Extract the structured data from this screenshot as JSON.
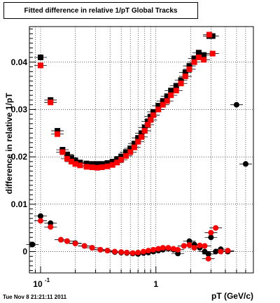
{
  "chart_data": {
    "type": "scatter",
    "title": "Fitted difference in relative 1/pT  Global Tracks",
    "xlabel": "pT (GeV/c)",
    "ylabel": "difference in relative 1/pT",
    "xscale": "log",
    "xlim": [
      0.08,
      7.0
    ],
    "ylim": [
      -0.0045,
      0.0475
    ],
    "x_ticks": [
      {
        "value": 0.1,
        "base": "10",
        "exp": "-1"
      },
      {
        "value": 1,
        "label": "1"
      }
    ],
    "y_ticks": [
      {
        "value": 0,
        "label": "0"
      },
      {
        "value": 0.01,
        "label": "0.01"
      },
      {
        "value": 0.02,
        "label": "0.02"
      },
      {
        "value": 0.03,
        "label": "0.03"
      },
      {
        "value": 0.04,
        "label": "0.04"
      }
    ],
    "grid": true,
    "series": [
      {
        "color": "#000000",
        "marker": "square",
        "points": [
          [
            0.1,
            0.041
          ],
          [
            0.122,
            0.032
          ],
          [
            0.14,
            0.0255
          ],
          [
            0.155,
            0.0215
          ],
          [
            0.17,
            0.0205
          ],
          [
            0.185,
            0.0198
          ],
          [
            0.2,
            0.0192
          ],
          [
            0.22,
            0.0188
          ],
          [
            0.25,
            0.0186
          ],
          [
            0.28,
            0.0185
          ],
          [
            0.31,
            0.0185
          ],
          [
            0.34,
            0.0185
          ],
          [
            0.38,
            0.0187
          ],
          [
            0.42,
            0.019
          ],
          [
            0.46,
            0.0195
          ],
          [
            0.5,
            0.0201
          ],
          [
            0.55,
            0.021
          ],
          [
            0.6,
            0.0218
          ],
          [
            0.65,
            0.0228
          ],
          [
            0.7,
            0.024
          ],
          [
            0.75,
            0.025
          ],
          [
            0.8,
            0.0262
          ],
          [
            0.85,
            0.0275
          ],
          [
            0.9,
            0.0285
          ],
          [
            0.95,
            0.0295
          ],
          [
            1.05,
            0.0308
          ],
          [
            1.15,
            0.0318
          ],
          [
            1.25,
            0.0328
          ],
          [
            1.35,
            0.034
          ],
          [
            1.5,
            0.035
          ],
          [
            1.65,
            0.0362
          ],
          [
            1.8,
            0.0378
          ],
          [
            1.95,
            0.0392
          ],
          [
            2.15,
            0.0408
          ],
          [
            2.35,
            0.042
          ],
          [
            2.6,
            0.0415
          ],
          [
            2.9,
            0.0455
          ],
          [
            3.1,
            0.0455
          ]
        ]
      },
      {
        "color": "#ff0000",
        "marker": "square",
        "points": [
          [
            0.1,
            0.0393
          ],
          [
            0.122,
            0.0315
          ],
          [
            0.14,
            0.0248
          ],
          [
            0.155,
            0.021
          ],
          [
            0.17,
            0.0196
          ],
          [
            0.185,
            0.019
          ],
          [
            0.2,
            0.0185
          ],
          [
            0.22,
            0.0182
          ],
          [
            0.25,
            0.0179
          ],
          [
            0.28,
            0.0178
          ],
          [
            0.31,
            0.0177
          ],
          [
            0.34,
            0.0178
          ],
          [
            0.38,
            0.018
          ],
          [
            0.42,
            0.0183
          ],
          [
            0.46,
            0.0188
          ],
          [
            0.5,
            0.0194
          ],
          [
            0.55,
            0.0202
          ],
          [
            0.6,
            0.021
          ],
          [
            0.65,
            0.022
          ],
          [
            0.7,
            0.0232
          ],
          [
            0.75,
            0.0242
          ],
          [
            0.8,
            0.0255
          ],
          [
            0.85,
            0.0268
          ],
          [
            0.9,
            0.0278
          ],
          [
            0.95,
            0.0288
          ],
          [
            1.05,
            0.03
          ],
          [
            1.15,
            0.031
          ],
          [
            1.25,
            0.0318
          ],
          [
            1.35,
            0.033
          ],
          [
            1.5,
            0.034
          ],
          [
            1.65,
            0.0355
          ],
          [
            1.8,
            0.037
          ],
          [
            1.95,
            0.0385
          ],
          [
            2.15,
            0.04
          ],
          [
            2.35,
            0.041
          ],
          [
            2.6,
            0.0405
          ],
          [
            2.9,
            0.0458
          ],
          [
            3.1,
            0.0418
          ]
        ]
      },
      {
        "color": "#000000",
        "marker": "circle",
        "points": [
          [
            0.085,
            0.0015
          ],
          [
            0.1,
            0.0075
          ],
          [
            0.122,
            0.006
          ],
          [
            0.15,
            0.0025
          ],
          [
            0.17,
            0.0022
          ],
          [
            0.2,
            0.0018
          ],
          [
            0.24,
            0.0012
          ],
          [
            0.28,
            0.0008
          ],
          [
            0.33,
            0.0004
          ],
          [
            0.38,
            0.0002
          ],
          [
            0.44,
            -0.0001
          ],
          [
            0.5,
            -0.0002
          ],
          [
            0.56,
            -0.0003
          ],
          [
            0.63,
            -0.0004
          ],
          [
            0.7,
            -0.0005
          ],
          [
            0.78,
            -0.0003
          ],
          [
            0.86,
            -0.0002
          ],
          [
            0.95,
            0.0
          ],
          [
            1.05,
            0.0002
          ],
          [
            1.15,
            0.0004
          ],
          [
            1.28,
            0.0006
          ],
          [
            1.42,
            0.0004
          ],
          [
            1.55,
            -0.0004
          ],
          [
            1.75,
            0.0012
          ],
          [
            1.95,
            0.0022
          ],
          [
            2.15,
            0.0015
          ],
          [
            2.4,
            0.0008
          ],
          [
            2.65,
            0.0
          ],
          [
            2.85,
            -0.0005
          ],
          [
            3.0,
            0.003
          ],
          [
            3.3,
            0.0
          ],
          [
            3.65,
            0.0005
          ],
          [
            4.2,
            0.0
          ],
          [
            5.0,
            0.031
          ],
          [
            6.0,
            0.0185
          ]
        ]
      },
      {
        "color": "#ff0000",
        "marker": "circle",
        "points": [
          [
            0.1,
            0.0065
          ],
          [
            0.122,
            0.0052
          ],
          [
            0.15,
            0.0025
          ],
          [
            0.17,
            0.0022
          ],
          [
            0.2,
            0.0017
          ],
          [
            0.24,
            0.0012
          ],
          [
            0.28,
            0.0008
          ],
          [
            0.33,
            0.0004
          ],
          [
            0.38,
            0.0002
          ],
          [
            0.44,
            0.0
          ],
          [
            0.5,
            -0.0001
          ],
          [
            0.56,
            -0.0002
          ],
          [
            0.63,
            -0.0003
          ],
          [
            0.7,
            -0.0002
          ],
          [
            0.78,
            0.0
          ],
          [
            0.86,
            0.0002
          ],
          [
            0.95,
            0.0004
          ],
          [
            1.05,
            0.0006
          ],
          [
            1.15,
            0.0008
          ],
          [
            1.28,
            0.0008
          ],
          [
            1.42,
            0.0006
          ],
          [
            1.55,
            0.0004
          ],
          [
            1.75,
            0.0012
          ],
          [
            1.95,
            0.0014
          ],
          [
            2.15,
            0.0008
          ],
          [
            2.4,
            0.0013
          ],
          [
            2.65,
            0.0012
          ],
          [
            2.85,
            -0.0015
          ],
          [
            3.0,
            0.004
          ],
          [
            3.3,
            0.005
          ],
          [
            3.65,
            0.0
          ],
          [
            4.2,
            0.0002
          ]
        ]
      }
    ]
  },
  "footer": "Tue Nov  8 21:21:11 2011"
}
